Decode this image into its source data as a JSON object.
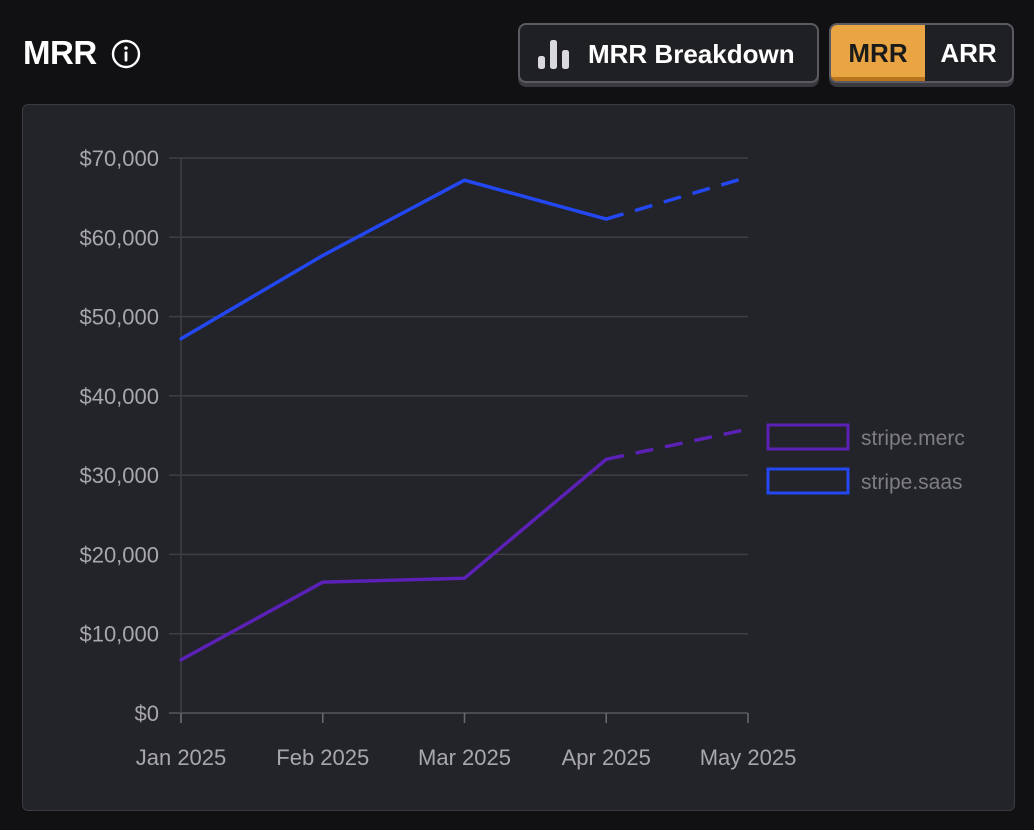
{
  "header": {
    "title": "MRR",
    "info_icon": "info-circle-icon",
    "breakdown_button": {
      "label": "MRR Breakdown",
      "icon": "bar-chart-icon"
    },
    "toggle": {
      "options": [
        "MRR",
        "ARR"
      ],
      "selected": "MRR",
      "active_color": "#e9a443"
    }
  },
  "chart_data": {
    "type": "line",
    "categories": [
      "Jan 2025",
      "Feb 2025",
      "Mar 2025",
      "Apr 2025",
      "May 2025"
    ],
    "yticks": [
      "$0",
      "$10,000",
      "$20,000",
      "$30,000",
      "$40,000",
      "$50,000",
      "$60,000",
      "$70,000"
    ],
    "ylim": [
      0,
      70000
    ],
    "grid": true,
    "legend_position": "right",
    "projected_from_index": 3,
    "series": [
      {
        "name": "stripe.merc",
        "color": "#5b21b6",
        "values": [
          6700,
          16500,
          17000,
          32000,
          35800
        ]
      },
      {
        "name": "stripe.saas",
        "color": "#2347f0",
        "values": [
          47200,
          57700,
          67200,
          62300,
          67600
        ]
      }
    ]
  }
}
